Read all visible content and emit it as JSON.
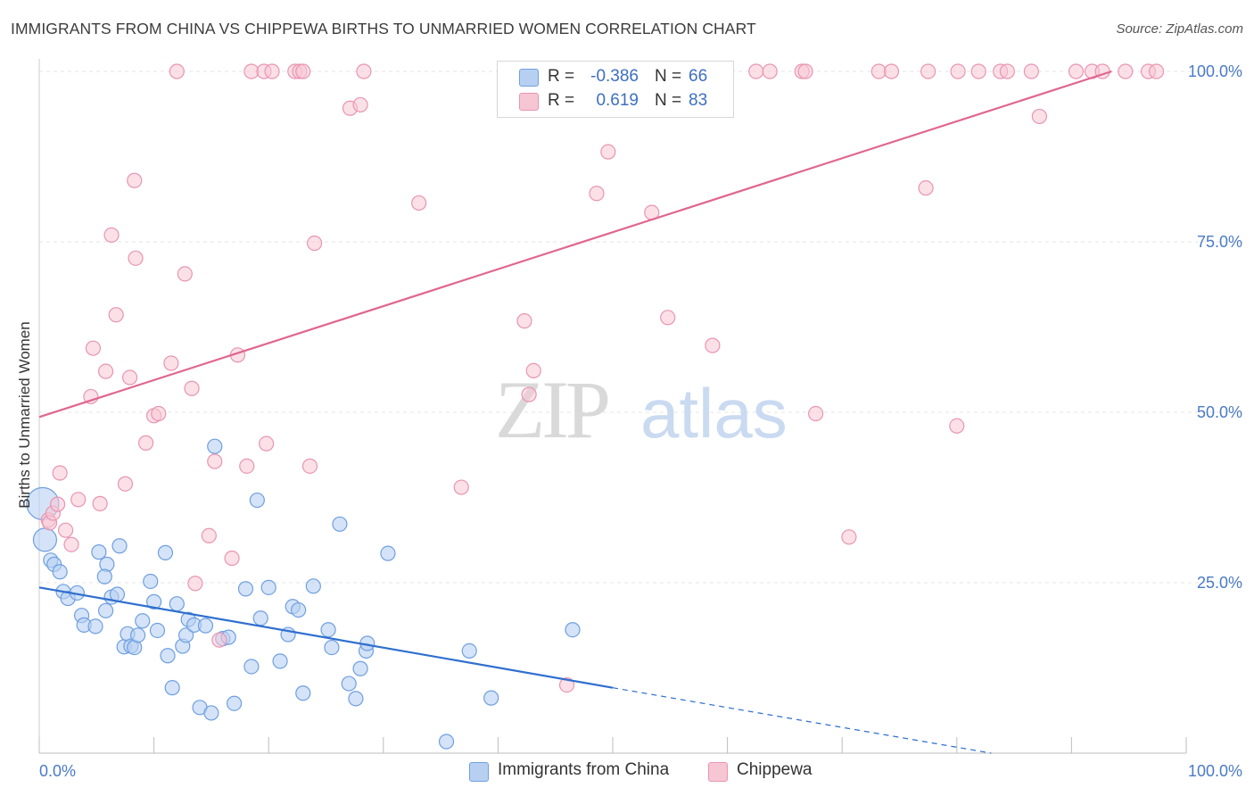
{
  "title": "IMMIGRANTS FROM CHINA VS CHIPPEWA BIRTHS TO UNMARRIED WOMEN CORRELATION CHART",
  "source": "Source: ZipAtlas.com",
  "watermark": {
    "zip": "ZIP",
    "atlas": "atlas"
  },
  "colors": {
    "china_fill": "#b7d0f2",
    "china_stroke": "#6f9fe0",
    "china_line": "#2f6fcf",
    "chippewa_fill": "#f7c6d5",
    "chippewa_stroke": "#e895b0",
    "chippewa_line": "#e06690",
    "tick_text": "#4a7ac6",
    "grid": "#e6e6e6"
  },
  "legend": {
    "rows": [
      {
        "r_label": "R =",
        "r_value": "-0.386",
        "n_label": "N =",
        "n_value": "66"
      },
      {
        "r_label": "R =",
        "r_value": "0.619",
        "n_label": "N =",
        "n_value": "83"
      }
    ]
  },
  "bottom_legend": {
    "china": "Immigrants from China",
    "chippewa": "Chippewa"
  },
  "chart_data": {
    "type": "scatter",
    "xlabel": "",
    "ylabel": "Births to Unmarried Women",
    "xlim": [
      0,
      100
    ],
    "ylim": [
      0,
      100
    ],
    "x_tick_labels": [
      "0.0%",
      "100.0%"
    ],
    "y_tick_labels": [
      "100.0%",
      "75.0%",
      "50.0%",
      "25.0%"
    ],
    "y_ticks": [
      100,
      75,
      50,
      25
    ],
    "grid": true,
    "legend_position": "top-center",
    "series": [
      {
        "name": "Immigrants from China",
        "points": [
          [
            0.3,
            36.6
          ],
          [
            0.5,
            31.3
          ],
          [
            1.0,
            28.3
          ],
          [
            1.3,
            27.7
          ],
          [
            1.8,
            26.6
          ],
          [
            2.1,
            23.7
          ],
          [
            2.5,
            22.7
          ],
          [
            3.3,
            23.5
          ],
          [
            3.7,
            20.2
          ],
          [
            3.9,
            18.8
          ],
          [
            4.9,
            18.6
          ],
          [
            5.9,
            27.7
          ],
          [
            5.2,
            29.5
          ],
          [
            5.7,
            25.9
          ],
          [
            5.8,
            20.9
          ],
          [
            6.3,
            22.9
          ],
          [
            6.8,
            23.3
          ],
          [
            7.0,
            30.4
          ],
          [
            7.4,
            15.6
          ],
          [
            7.7,
            17.5
          ],
          [
            8.0,
            15.7
          ],
          [
            8.3,
            15.5
          ],
          [
            8.6,
            17.3
          ],
          [
            9.0,
            19.4
          ],
          [
            9.7,
            25.2
          ],
          [
            10.0,
            22.2
          ],
          [
            10.3,
            18.0
          ],
          [
            11.0,
            29.4
          ],
          [
            11.2,
            14.3
          ],
          [
            11.6,
            9.6
          ],
          [
            12.0,
            21.9
          ],
          [
            12.5,
            15.7
          ],
          [
            12.8,
            17.3
          ],
          [
            13.0,
            19.6
          ],
          [
            13.5,
            18.8
          ],
          [
            14.0,
            6.7
          ],
          [
            14.5,
            18.7
          ],
          [
            15.0,
            5.9
          ],
          [
            15.3,
            45.0
          ],
          [
            16.0,
            16.8
          ],
          [
            16.5,
            17.0
          ],
          [
            17.0,
            7.3
          ],
          [
            18.0,
            24.1
          ],
          [
            18.5,
            12.7
          ],
          [
            19.0,
            37.1
          ],
          [
            19.3,
            19.8
          ],
          [
            20.0,
            24.3
          ],
          [
            21.0,
            13.5
          ],
          [
            21.7,
            17.4
          ],
          [
            22.1,
            21.5
          ],
          [
            22.6,
            21.0
          ],
          [
            23.0,
            8.8
          ],
          [
            23.9,
            24.5
          ],
          [
            25.2,
            18.1
          ],
          [
            25.5,
            15.5
          ],
          [
            26.2,
            33.6
          ],
          [
            27.0,
            10.2
          ],
          [
            27.6,
            8.0
          ],
          [
            28.0,
            12.4
          ],
          [
            28.5,
            15.0
          ],
          [
            28.6,
            16.1
          ],
          [
            30.4,
            29.3
          ],
          [
            35.5,
            1.7
          ],
          [
            37.5,
            15.0
          ],
          [
            39.4,
            8.1
          ],
          [
            46.5,
            18.1
          ]
        ]
      },
      {
        "name": "Chippewa",
        "points": [
          [
            0.8,
            34.2
          ],
          [
            0.9,
            33.8
          ],
          [
            1.2,
            35.2
          ],
          [
            1.8,
            41.1
          ],
          [
            1.6,
            36.5
          ],
          [
            2.3,
            32.7
          ],
          [
            2.8,
            30.6
          ],
          [
            3.4,
            37.2
          ],
          [
            4.5,
            52.3
          ],
          [
            4.7,
            59.4
          ],
          [
            5.3,
            36.6
          ],
          [
            5.8,
            56.0
          ],
          [
            6.3,
            76.0
          ],
          [
            6.7,
            64.3
          ],
          [
            7.5,
            39.5
          ],
          [
            7.9,
            55.1
          ],
          [
            8.3,
            84.0
          ],
          [
            8.4,
            72.6
          ],
          [
            9.3,
            45.5
          ],
          [
            10.0,
            49.5
          ],
          [
            10.4,
            49.8
          ],
          [
            11.5,
            57.2
          ],
          [
            12.0,
            100.0
          ],
          [
            12.7,
            70.3
          ],
          [
            13.3,
            53.5
          ],
          [
            13.6,
            24.9
          ],
          [
            14.8,
            31.9
          ],
          [
            15.3,
            42.8
          ],
          [
            15.7,
            16.6
          ],
          [
            16.8,
            28.6
          ],
          [
            17.3,
            58.4
          ],
          [
            18.1,
            42.1
          ],
          [
            18.5,
            100.0
          ],
          [
            19.6,
            100.0
          ],
          [
            19.8,
            45.4
          ],
          [
            20.3,
            100.0
          ],
          [
            22.3,
            100.0
          ],
          [
            22.7,
            100.0
          ],
          [
            23.0,
            100.0
          ],
          [
            23.6,
            42.1
          ],
          [
            24.0,
            74.8
          ],
          [
            27.1,
            94.6
          ],
          [
            28.0,
            95.1
          ],
          [
            28.3,
            100.0
          ],
          [
            33.1,
            80.7
          ],
          [
            36.8,
            39.0
          ],
          [
            42.3,
            63.4
          ],
          [
            42.7,
            52.6
          ],
          [
            43.1,
            56.1
          ],
          [
            45.1,
            100.0
          ],
          [
            46.0,
            10.0
          ],
          [
            48.6,
            82.1
          ],
          [
            49.6,
            88.2
          ],
          [
            53.0,
            100.0
          ],
          [
            53.4,
            79.3
          ],
          [
            54.3,
            100.0
          ],
          [
            54.8,
            63.9
          ],
          [
            55.2,
            100.0
          ],
          [
            58.5,
            100.0
          ],
          [
            58.7,
            59.8
          ],
          [
            62.5,
            100.0
          ],
          [
            63.7,
            100.0
          ],
          [
            66.5,
            100.0
          ],
          [
            66.8,
            100.0
          ],
          [
            67.7,
            49.8
          ],
          [
            70.6,
            31.7
          ],
          [
            73.2,
            100.0
          ],
          [
            74.3,
            100.0
          ],
          [
            77.3,
            82.9
          ],
          [
            77.5,
            100.0
          ],
          [
            80.0,
            48.0
          ],
          [
            80.1,
            100.0
          ],
          [
            81.9,
            100.0
          ],
          [
            83.8,
            100.0
          ],
          [
            84.4,
            100.0
          ],
          [
            86.5,
            100.0
          ],
          [
            87.2,
            93.4
          ],
          [
            90.4,
            100.0
          ],
          [
            91.8,
            100.0
          ],
          [
            92.7,
            100.0
          ],
          [
            94.7,
            100.0
          ],
          [
            96.7,
            100.0
          ],
          [
            97.4,
            100.0
          ]
        ]
      }
    ],
    "trend_lines": [
      {
        "name": "Immigrants from China",
        "x0": 0,
        "y0": 24.3,
        "x1": 50,
        "y1": 9.6,
        "dashed_to_x": 83,
        "dashed_to_y": 0
      },
      {
        "name": "Chippewa",
        "x0": 0,
        "y0": 49.3,
        "x1": 93.5,
        "y1": 100.0
      }
    ]
  }
}
